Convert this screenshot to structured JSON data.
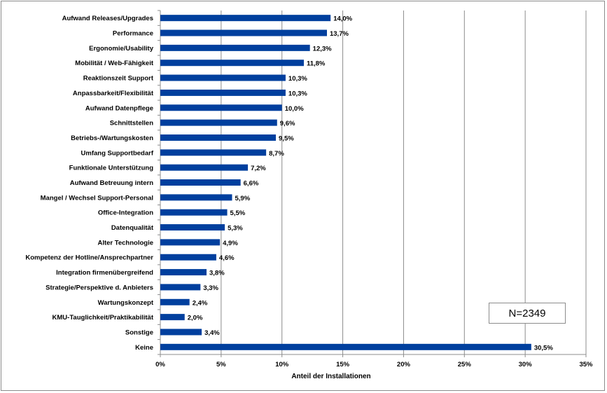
{
  "chart_data": {
    "type": "bar",
    "orientation": "horizontal",
    "categories": [
      "Aufwand Releases/Upgrades",
      "Performance",
      "Ergonomie/Usability",
      "Mobilität / Web-Fähigkeit",
      "Reaktionszeit Support",
      "Anpassbarkeit/Flexibilität",
      "Aufwand Datenpflege",
      "Schnittstellen",
      "Betriebs-/Wartungskosten",
      "Umfang Supportbedarf",
      "Funktionale Unterstützung",
      "Aufwand Betreuung intern",
      "Mangel / Wechsel Support-Personal",
      "Office-Integration",
      "Datenqualität",
      "Alter Technologie",
      "Kompetenz der Hotline/Ansprechpartner",
      "Integration firmenübergreifend",
      "Strategie/Perspektive d. Anbieters",
      "Wartungskonzept",
      "KMU-Tauglichkeit/Praktikabilität",
      "Sonstige",
      "Keine"
    ],
    "values": [
      14.0,
      13.7,
      12.3,
      11.8,
      10.3,
      10.3,
      10.0,
      9.6,
      9.5,
      8.7,
      7.2,
      6.6,
      5.9,
      5.5,
      5.3,
      4.9,
      4.6,
      3.8,
      3.3,
      2.4,
      2.0,
      3.4,
      30.5
    ],
    "value_labels": [
      "14,0%",
      "13,7%",
      "12,3%",
      "11,8%",
      "10,3%",
      "10,3%",
      "10,0%",
      "9,6%",
      "9,5%",
      "8,7%",
      "7,2%",
      "6,6%",
      "5,9%",
      "5,5%",
      "5,3%",
      "4,9%",
      "4,6%",
      "3,8%",
      "3,3%",
      "2,4%",
      "2,0%",
      "3,4%",
      "30,5%"
    ],
    "x_ticks": [
      "0%",
      "5%",
      "10%",
      "15%",
      "20%",
      "25%",
      "30%",
      "35%"
    ],
    "xlim": [
      0,
      35
    ],
    "xlabel": "Anteil der Installationen",
    "annotation": "N=2349",
    "bar_color": "#003f9e",
    "grid": true
  }
}
